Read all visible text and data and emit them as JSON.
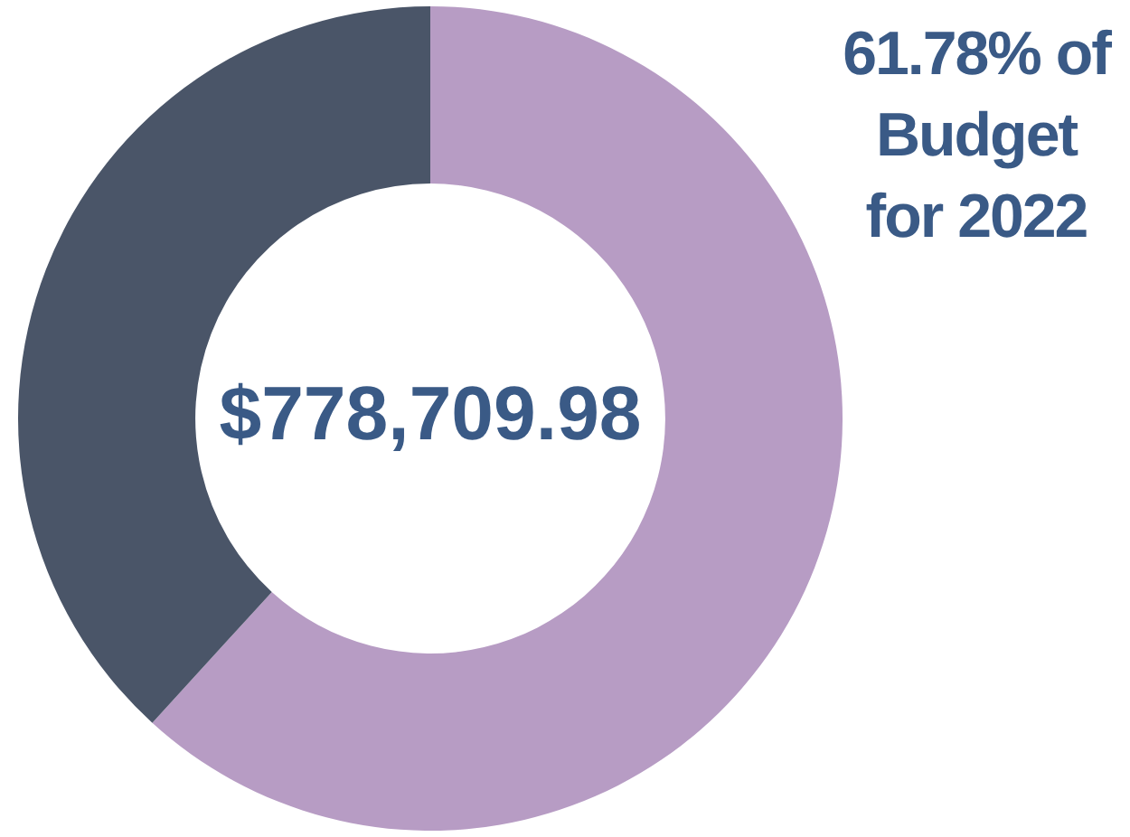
{
  "chart_data": {
    "type": "donut",
    "title": "61.78% of Budget for 2022",
    "categories": [
      null,
      null
    ],
    "values": [
      61.78,
      38.22
    ],
    "colors": [
      "#b79cc4",
      "#4a5568"
    ],
    "annotations": [
      "$778,709.98"
    ]
  }
}
